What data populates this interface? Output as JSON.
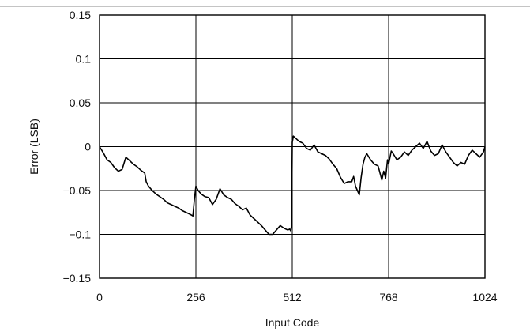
{
  "chart_data": {
    "type": "line",
    "xlabel": "Input Code",
    "ylabel": "Error (LSB)",
    "xlim": [
      0,
      1024
    ],
    "ylim": [
      -0.15,
      0.15
    ],
    "x_ticks": [
      0,
      256,
      512,
      768,
      1024
    ],
    "x_tick_labels": [
      "0",
      "256",
      "512",
      "768",
      "1024"
    ],
    "y_ticks": [
      0.15,
      0.1,
      0.05,
      0,
      -0.05,
      -0.1,
      -0.15
    ],
    "y_tick_labels": [
      "0.15",
      "0.1",
      "0.05",
      "0",
      "−0.05",
      "−0.1",
      "−0.15"
    ],
    "grid": true,
    "series": [
      {
        "color": "#000000",
        "x": [
          0,
          10,
          20,
          30,
          40,
          50,
          60,
          70,
          80,
          90,
          100,
          110,
          120,
          124,
          130,
          140,
          150,
          160,
          170,
          180,
          190,
          200,
          210,
          220,
          230,
          240,
          248,
          252,
          256,
          262,
          270,
          280,
          290,
          300,
          310,
          320,
          330,
          340,
          350,
          360,
          370,
          380,
          390,
          400,
          410,
          420,
          430,
          440,
          450,
          460,
          470,
          480,
          490,
          500,
          505,
          508,
          510,
          511,
          512,
          515,
          520,
          530,
          540,
          550,
          560,
          570,
          580,
          590,
          600,
          610,
          620,
          630,
          640,
          650,
          660,
          670,
          675,
          680,
          685,
          690,
          695,
          700,
          705,
          710,
          720,
          730,
          740,
          745,
          750,
          755,
          760,
          765,
          768,
          775,
          780,
          790,
          800,
          810,
          820,
          830,
          840,
          850,
          860,
          870,
          880,
          890,
          900,
          910,
          920,
          930,
          940,
          950,
          960,
          970,
          980,
          990,
          1000,
          1010,
          1020,
          1024
        ],
        "y": [
          0,
          -0.007,
          -0.015,
          -0.018,
          -0.024,
          -0.028,
          -0.026,
          -0.012,
          -0.016,
          -0.02,
          -0.023,
          -0.027,
          -0.03,
          -0.04,
          -0.045,
          -0.05,
          -0.054,
          -0.057,
          -0.06,
          -0.064,
          -0.066,
          -0.068,
          -0.07,
          -0.073,
          -0.075,
          -0.077,
          -0.079,
          -0.06,
          -0.045,
          -0.05,
          -0.054,
          -0.057,
          -0.058,
          -0.066,
          -0.06,
          -0.048,
          -0.055,
          -0.058,
          -0.06,
          -0.065,
          -0.068,
          -0.072,
          -0.07,
          -0.078,
          -0.082,
          -0.086,
          -0.09,
          -0.095,
          -0.1,
          -0.1,
          -0.095,
          -0.09,
          -0.093,
          -0.095,
          -0.094,
          -0.096,
          -0.09,
          -0.05,
          0.005,
          0.012,
          0.01,
          0.006,
          0.004,
          -0.002,
          -0.004,
          0.002,
          -0.006,
          -0.008,
          -0.01,
          -0.014,
          -0.02,
          -0.025,
          -0.035,
          -0.042,
          -0.04,
          -0.04,
          -0.034,
          -0.045,
          -0.05,
          -0.055,
          -0.035,
          -0.02,
          -0.012,
          -0.008,
          -0.015,
          -0.02,
          -0.022,
          -0.03,
          -0.038,
          -0.028,
          -0.036,
          -0.015,
          -0.02,
          -0.005,
          -0.008,
          -0.015,
          -0.012,
          -0.006,
          -0.01,
          -0.004,
          0,
          0.004,
          -0.002,
          0.006,
          -0.005,
          -0.01,
          -0.008,
          0.002,
          -0.006,
          -0.012,
          -0.018,
          -0.022,
          -0.018,
          -0.02,
          -0.01,
          -0.004,
          -0.008,
          -0.012,
          -0.006,
          0
        ]
      }
    ]
  }
}
